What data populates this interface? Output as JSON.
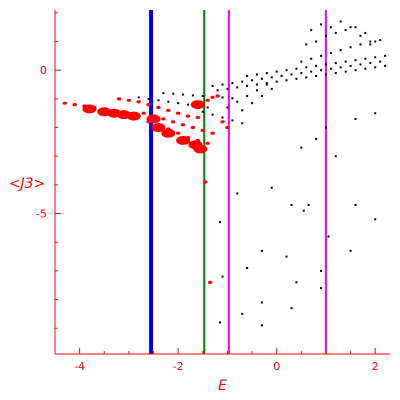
{
  "chart_data": {
    "type": "scatter",
    "title": "",
    "xlabel": "E",
    "ylabel": "<J3>",
    "xlim": [
      -4.5,
      2.3
    ],
    "ylim": [
      -9.9,
      2.1
    ],
    "xticks": [
      -4,
      -2,
      0,
      2
    ],
    "xtick_labels": [
      "-4",
      "-2",
      "0",
      "2"
    ],
    "yticks": [
      0,
      -5
    ],
    "ytick_labels": [
      "0",
      "-5"
    ],
    "grid": false,
    "colors": {
      "axis": "#ff0000",
      "scatter_black": "#000000",
      "scatter_red": "#ff0000",
      "vline_blue": "#0000ff",
      "vline_green": "#008000",
      "vline_magenta": "#ff00ff"
    },
    "vertical_lines": [
      {
        "x": -2.55,
        "color": "#0000ff"
      },
      {
        "x": -1.47,
        "color": "#008000"
      },
      {
        "x": -0.97,
        "color": "#ff00ff"
      },
      {
        "x": 1.0,
        "color": "#ff00ff"
      }
    ],
    "series": [
      {
        "points": [
          [
            -2.8,
            -0.95
          ],
          [
            -2.6,
            -1.0
          ],
          [
            -2.4,
            -1.05
          ],
          [
            -2.2,
            -1.1
          ],
          [
            -2.0,
            -1.15
          ],
          [
            -1.8,
            -1.2
          ],
          [
            -1.6,
            -1.25
          ],
          [
            -1.4,
            -1.3
          ],
          [
            -2.3,
            -0.8
          ],
          [
            -2.1,
            -0.82
          ],
          [
            -1.9,
            -0.85
          ],
          [
            -1.7,
            -0.88
          ],
          [
            -1.5,
            -0.9
          ],
          [
            -1.3,
            -0.93
          ],
          [
            -1.1,
            -0.95
          ],
          [
            -0.9,
            -0.98
          ],
          [
            -1.3,
            -0.55
          ],
          [
            -1.1,
            -0.5
          ],
          [
            -0.9,
            -0.45
          ],
          [
            -0.7,
            -0.4
          ],
          [
            -0.5,
            -0.35
          ],
          [
            -0.3,
            -0.3
          ],
          [
            -0.1,
            -0.25
          ],
          [
            0.1,
            -0.2
          ],
          [
            0.3,
            -0.15
          ],
          [
            0.5,
            -0.1
          ],
          [
            0.7,
            -0.05
          ],
          [
            0.9,
            0.0
          ],
          [
            1.1,
            0.05
          ],
          [
            1.3,
            0.1
          ],
          [
            1.5,
            0.15
          ],
          [
            1.7,
            0.2
          ],
          [
            1.9,
            0.25
          ],
          [
            2.1,
            0.3
          ],
          [
            -1.2,
            -0.7
          ],
          [
            -1.0,
            -0.65
          ],
          [
            -0.8,
            -0.6
          ],
          [
            -0.6,
            -0.55
          ],
          [
            -0.4,
            -0.5
          ],
          [
            -0.2,
            -0.45
          ],
          [
            0.0,
            -0.4
          ],
          [
            0.2,
            -0.35
          ],
          [
            0.4,
            -0.3
          ],
          [
            0.6,
            -0.25
          ],
          [
            0.8,
            -0.2
          ],
          [
            1.0,
            -0.15
          ],
          [
            1.2,
            -0.1
          ],
          [
            1.4,
            -0.05
          ],
          [
            1.6,
            0.0
          ],
          [
            1.8,
            0.05
          ],
          [
            2.0,
            0.1
          ],
          [
            2.2,
            0.15
          ],
          [
            -0.6,
            -0.2
          ],
          [
            -0.4,
            -0.15
          ],
          [
            -0.2,
            -0.1
          ],
          [
            0.0,
            -0.05
          ],
          [
            0.2,
            0.0
          ],
          [
            0.4,
            0.05
          ],
          [
            0.6,
            0.1
          ],
          [
            0.8,
            0.15
          ],
          [
            1.0,
            0.2
          ],
          [
            1.2,
            0.25
          ],
          [
            1.4,
            0.3
          ],
          [
            1.6,
            0.35
          ],
          [
            1.8,
            0.4
          ],
          [
            2.0,
            0.45
          ],
          [
            2.2,
            0.5
          ],
          [
            0.5,
            0.3
          ],
          [
            0.7,
            0.4
          ],
          [
            0.9,
            0.5
          ],
          [
            1.1,
            0.6
          ],
          [
            1.3,
            0.7
          ],
          [
            1.5,
            0.8
          ],
          [
            1.7,
            0.9
          ],
          [
            1.9,
            1.0
          ],
          [
            2.1,
            1.05
          ],
          [
            0.6,
            0.9
          ],
          [
            0.8,
            1.0
          ],
          [
            1.0,
            1.2
          ],
          [
            1.2,
            1.3
          ],
          [
            1.4,
            1.4
          ],
          [
            1.6,
            1.5
          ],
          [
            1.8,
            1.3
          ],
          [
            2.0,
            1.0
          ],
          [
            0.7,
            1.4
          ],
          [
            0.9,
            1.6
          ],
          [
            1.1,
            1.5
          ],
          [
            1.3,
            1.7
          ],
          [
            1.5,
            1.5
          ],
          [
            1.7,
            1.2
          ],
          [
            1.9,
            0.9
          ],
          [
            -1.5,
            -1.45
          ],
          [
            -1.3,
            -1.55
          ],
          [
            -1.1,
            -1.65
          ],
          [
            -0.9,
            -1.75
          ],
          [
            -0.7,
            -1.85
          ],
          [
            -1.0,
            -1.3
          ],
          [
            -0.8,
            -1.1
          ],
          [
            -0.6,
            -0.9
          ],
          [
            -0.4,
            -0.7
          ],
          [
            -0.2,
            -0.5
          ],
          [
            -0.7,
            -1.4
          ],
          [
            -0.5,
            -1.15
          ],
          [
            -0.3,
            -0.9
          ],
          [
            -0.1,
            -0.65
          ],
          [
            0.5,
            -2.7
          ],
          [
            0.8,
            -2.4
          ],
          [
            1.0,
            -2.0
          ],
          [
            1.6,
            -1.7
          ],
          [
            2.0,
            -1.5
          ],
          [
            1.2,
            -3.0
          ],
          [
            -0.8,
            -4.3
          ],
          [
            -0.1,
            -4.1
          ],
          [
            0.3,
            -4.7
          ],
          [
            0.55,
            -4.9
          ],
          [
            0.65,
            -4.7
          ],
          [
            1.05,
            -5.8
          ],
          [
            1.6,
            -4.7
          ],
          [
            2.0,
            -5.2
          ],
          [
            1.5,
            -6.3
          ],
          [
            -0.3,
            -6.3
          ],
          [
            0.2,
            -6.5
          ],
          [
            -0.6,
            -6.9
          ],
          [
            0.4,
            -7.4
          ],
          [
            0.9,
            -7.0
          ],
          [
            0.9,
            -7.6
          ],
          [
            -0.7,
            -8.5
          ],
          [
            -0.3,
            -8.1
          ],
          [
            0.3,
            -8.3
          ],
          [
            -1.15,
            -8.8
          ],
          [
            -0.3,
            -8.9
          ],
          [
            -1.15,
            -5.3
          ],
          [
            -1.1,
            -7.2
          ]
        ],
        "color": "#000000",
        "marker": "dot"
      },
      {
        "points": [
          [
            -4.3,
            -1.15
          ],
          [
            -4.1,
            -1.2
          ],
          [
            -3.9,
            -1.25
          ],
          [
            -3.7,
            -1.3
          ],
          [
            -3.5,
            -1.35
          ],
          [
            -3.3,
            -1.4
          ],
          [
            -3.1,
            -1.45
          ],
          [
            -2.9,
            -1.5
          ],
          [
            -3.2,
            -1.0
          ],
          [
            -3.0,
            -1.05
          ],
          [
            -2.8,
            -1.1
          ],
          [
            -2.6,
            -1.2
          ],
          [
            -2.4,
            -1.3
          ],
          [
            -2.2,
            -1.4
          ],
          [
            -2.0,
            -1.5
          ],
          [
            -1.8,
            -1.6
          ],
          [
            -1.6,
            -1.65
          ],
          [
            -2.7,
            -1.5
          ],
          [
            -2.5,
            -1.6
          ],
          [
            -2.3,
            -1.7
          ],
          [
            -2.1,
            -1.8
          ],
          [
            -1.9,
            -1.9
          ],
          [
            -1.7,
            -2.0
          ],
          [
            -1.5,
            -2.1
          ],
          [
            -1.3,
            -2.2
          ],
          [
            -2.6,
            -1.8
          ],
          [
            -2.4,
            -1.95
          ],
          [
            -2.2,
            -2.05
          ],
          [
            -2.0,
            -2.2
          ],
          [
            -1.8,
            -2.35
          ],
          [
            -1.6,
            -2.45
          ],
          [
            -1.4,
            -2.55
          ],
          [
            -1.5,
            -1.15
          ],
          [
            -1.4,
            -1.05
          ],
          [
            -1.3,
            -0.95
          ],
          [
            -1.2,
            -0.9
          ],
          [
            -1.45,
            -3.9
          ],
          [
            -1.35,
            -7.4
          ],
          [
            -1.1,
            -1.8
          ],
          [
            -1.0,
            -2.0
          ]
        ],
        "color": "#ff0000",
        "marker": "small"
      },
      {
        "points": [
          [
            -3.8,
            -1.35
          ],
          [
            -3.5,
            -1.45
          ],
          [
            -3.3,
            -1.5
          ],
          [
            -3.1,
            -1.55
          ],
          [
            -2.9,
            -1.6
          ],
          [
            -2.5,
            -1.7
          ],
          [
            -2.4,
            -2.0
          ],
          [
            -2.2,
            -2.2
          ],
          [
            -1.9,
            -2.45
          ],
          [
            -1.65,
            -2.6
          ],
          [
            -1.55,
            -2.75
          ],
          [
            -1.6,
            -1.2
          ]
        ],
        "color": "#ff0000",
        "marker": "large"
      }
    ]
  }
}
